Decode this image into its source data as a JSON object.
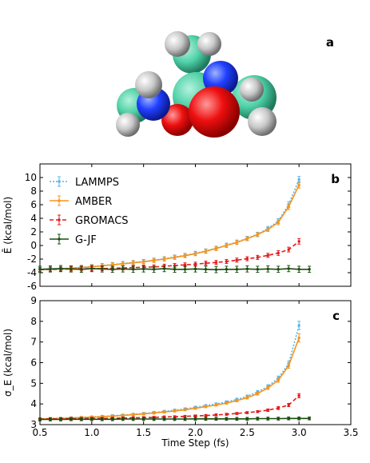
{
  "molecule": {
    "panel_label": "a"
  },
  "chart_data": [
    {
      "type": "line",
      "panel_label": "b",
      "ylabel": "Ē (kcal/mol)",
      "xlim": [
        0.5,
        3.5
      ],
      "ylim": [
        -6,
        12
      ],
      "yticks": [
        -6,
        -4,
        -2,
        0,
        2,
        4,
        6,
        8,
        10
      ],
      "legend_position": "top-left",
      "series": [
        {
          "name": "LAMMPS",
          "color": "#56b4e9",
          "style": "dotted",
          "x": [
            0.5,
            0.6,
            0.7,
            0.8,
            0.9,
            1.0,
            1.1,
            1.2,
            1.3,
            1.4,
            1.5,
            1.6,
            1.7,
            1.8,
            1.9,
            2.0,
            2.1,
            2.2,
            2.3,
            2.4,
            2.5,
            2.6,
            2.7,
            2.8,
            2.9,
            3.0
          ],
          "y": [
            -3.5,
            -3.45,
            -3.4,
            -3.3,
            -3.2,
            -3.1,
            -2.95,
            -2.8,
            -2.65,
            -2.5,
            -2.35,
            -2.15,
            -1.95,
            -1.7,
            -1.45,
            -1.15,
            -0.8,
            -0.4,
            0.05,
            0.5,
            1.05,
            1.65,
            2.5,
            3.6,
            6.0,
            9.7
          ],
          "err": [
            0.3,
            0.3,
            0.3,
            0.3,
            0.3,
            0.3,
            0.3,
            0.3,
            0.3,
            0.3,
            0.3,
            0.3,
            0.3,
            0.3,
            0.3,
            0.3,
            0.3,
            0.3,
            0.3,
            0.3,
            0.3,
            0.3,
            0.3,
            0.35,
            0.4,
            0.45
          ]
        },
        {
          "name": "AMBER",
          "color": "#f7941d",
          "style": "solid",
          "x": [
            0.5,
            0.6,
            0.7,
            0.8,
            0.9,
            1.0,
            1.1,
            1.2,
            1.3,
            1.4,
            1.5,
            1.6,
            1.7,
            1.8,
            1.9,
            2.0,
            2.1,
            2.2,
            2.3,
            2.4,
            2.5,
            2.6,
            2.7,
            2.8,
            2.9,
            3.0
          ],
          "y": [
            -3.55,
            -3.5,
            -3.45,
            -3.35,
            -3.25,
            -3.15,
            -3.0,
            -2.85,
            -2.7,
            -2.55,
            -2.4,
            -2.2,
            -2.0,
            -1.75,
            -1.5,
            -1.2,
            -0.85,
            -0.45,
            0.0,
            0.45,
            1.0,
            1.6,
            2.35,
            3.4,
            5.7,
            8.9
          ],
          "err": [
            0.3,
            0.3,
            0.3,
            0.3,
            0.3,
            0.3,
            0.3,
            0.3,
            0.3,
            0.3,
            0.3,
            0.3,
            0.3,
            0.3,
            0.3,
            0.3,
            0.3,
            0.3,
            0.3,
            0.3,
            0.3,
            0.3,
            0.3,
            0.35,
            0.4,
            0.45
          ]
        },
        {
          "name": "GROMACS",
          "color": "#e41a1c",
          "style": "dashed",
          "x": [
            0.5,
            0.6,
            0.7,
            0.8,
            0.9,
            1.0,
            1.1,
            1.2,
            1.3,
            1.4,
            1.5,
            1.6,
            1.7,
            1.8,
            1.9,
            2.0,
            2.1,
            2.2,
            2.3,
            2.4,
            2.5,
            2.6,
            2.7,
            2.8,
            2.9,
            3.0
          ],
          "y": [
            -3.55,
            -3.5,
            -3.5,
            -3.45,
            -3.45,
            -3.4,
            -3.4,
            -3.35,
            -3.3,
            -3.25,
            -3.2,
            -3.15,
            -3.05,
            -2.95,
            -2.85,
            -2.75,
            -2.6,
            -2.5,
            -2.35,
            -2.15,
            -1.95,
            -1.75,
            -1.45,
            -1.1,
            -0.6,
            0.6
          ],
          "err": [
            0.3,
            0.3,
            0.3,
            0.3,
            0.3,
            0.3,
            0.3,
            0.3,
            0.3,
            0.3,
            0.3,
            0.3,
            0.3,
            0.3,
            0.3,
            0.3,
            0.3,
            0.3,
            0.3,
            0.3,
            0.3,
            0.3,
            0.3,
            0.35,
            0.35,
            0.4
          ]
        },
        {
          "name": "G-JF",
          "color": "#1b4d0f",
          "style": "solid",
          "x": [
            0.5,
            0.6,
            0.7,
            0.8,
            0.9,
            1.0,
            1.1,
            1.2,
            1.3,
            1.4,
            1.5,
            1.6,
            1.7,
            1.8,
            1.9,
            2.0,
            2.1,
            2.2,
            2.3,
            2.4,
            2.5,
            2.6,
            2.7,
            2.8,
            2.9,
            3.0,
            3.1
          ],
          "y": [
            -3.5,
            -3.45,
            -3.4,
            -3.45,
            -3.5,
            -3.4,
            -3.45,
            -3.5,
            -3.45,
            -3.5,
            -3.45,
            -3.5,
            -3.4,
            -3.5,
            -3.5,
            -3.45,
            -3.5,
            -3.55,
            -3.5,
            -3.5,
            -3.45,
            -3.5,
            -3.45,
            -3.5,
            -3.4,
            -3.5,
            -3.5
          ],
          "err": [
            0.45,
            0.45,
            0.45,
            0.45,
            0.45,
            0.45,
            0.45,
            0.45,
            0.45,
            0.45,
            0.45,
            0.45,
            0.45,
            0.45,
            0.45,
            0.45,
            0.45,
            0.45,
            0.45,
            0.45,
            0.45,
            0.45,
            0.45,
            0.45,
            0.45,
            0.45,
            0.45
          ]
        }
      ]
    },
    {
      "type": "line",
      "panel_label": "c",
      "xlabel": "Time Step (fs)",
      "ylabel": "σ_E (kcal/mol)",
      "xlim": [
        0.5,
        3.5
      ],
      "ylim": [
        3,
        9
      ],
      "xticks": [
        0.5,
        1.0,
        1.5,
        2.0,
        2.5,
        3.0,
        3.5
      ],
      "yticks": [
        3,
        4,
        5,
        6,
        7,
        8,
        9
      ],
      "series": [
        {
          "name": "LAMMPS",
          "color": "#56b4e9",
          "style": "dotted",
          "x": [
            0.5,
            0.6,
            0.7,
            0.8,
            0.9,
            1.0,
            1.1,
            1.2,
            1.3,
            1.4,
            1.5,
            1.6,
            1.7,
            1.8,
            1.9,
            2.0,
            2.1,
            2.2,
            2.3,
            2.4,
            2.5,
            2.6,
            2.7,
            2.8,
            2.9,
            3.0
          ],
          "y": [
            3.28,
            3.3,
            3.31,
            3.33,
            3.35,
            3.37,
            3.4,
            3.43,
            3.46,
            3.5,
            3.54,
            3.59,
            3.64,
            3.7,
            3.76,
            3.84,
            3.92,
            4.0,
            4.1,
            4.22,
            4.37,
            4.58,
            4.85,
            5.25,
            5.95,
            7.8
          ],
          "err": [
            0.05,
            0.05,
            0.05,
            0.05,
            0.05,
            0.05,
            0.05,
            0.05,
            0.05,
            0.05,
            0.05,
            0.05,
            0.05,
            0.05,
            0.05,
            0.05,
            0.05,
            0.05,
            0.05,
            0.06,
            0.06,
            0.07,
            0.08,
            0.1,
            0.12,
            0.2
          ]
        },
        {
          "name": "AMBER",
          "color": "#f7941d",
          "style": "solid",
          "x": [
            0.5,
            0.6,
            0.7,
            0.8,
            0.9,
            1.0,
            1.1,
            1.2,
            1.3,
            1.4,
            1.5,
            1.6,
            1.7,
            1.8,
            1.9,
            2.0,
            2.1,
            2.2,
            2.3,
            2.4,
            2.5,
            2.6,
            2.7,
            2.8,
            2.9,
            3.0
          ],
          "y": [
            3.27,
            3.29,
            3.3,
            3.32,
            3.34,
            3.36,
            3.38,
            3.41,
            3.44,
            3.48,
            3.52,
            3.56,
            3.61,
            3.66,
            3.72,
            3.79,
            3.87,
            3.95,
            4.04,
            4.16,
            4.3,
            4.5,
            4.78,
            5.15,
            5.85,
            7.2
          ],
          "err": [
            0.05,
            0.05,
            0.05,
            0.05,
            0.05,
            0.05,
            0.05,
            0.05,
            0.05,
            0.05,
            0.05,
            0.05,
            0.05,
            0.05,
            0.05,
            0.05,
            0.05,
            0.05,
            0.05,
            0.06,
            0.06,
            0.07,
            0.08,
            0.1,
            0.12,
            0.2
          ]
        },
        {
          "name": "GROMACS",
          "color": "#e41a1c",
          "style": "dashed",
          "x": [
            0.5,
            0.6,
            0.7,
            0.8,
            0.9,
            1.0,
            1.1,
            1.2,
            1.3,
            1.4,
            1.5,
            1.6,
            1.7,
            1.8,
            1.9,
            2.0,
            2.1,
            2.2,
            2.3,
            2.4,
            2.5,
            2.6,
            2.7,
            2.8,
            2.9,
            3.0
          ],
          "y": [
            3.27,
            3.28,
            3.28,
            3.29,
            3.29,
            3.3,
            3.3,
            3.31,
            3.32,
            3.33,
            3.34,
            3.35,
            3.37,
            3.38,
            3.4,
            3.42,
            3.44,
            3.47,
            3.5,
            3.54,
            3.58,
            3.63,
            3.7,
            3.8,
            3.95,
            4.4
          ],
          "err": [
            0.05,
            0.05,
            0.05,
            0.05,
            0.05,
            0.05,
            0.05,
            0.05,
            0.05,
            0.05,
            0.05,
            0.05,
            0.05,
            0.05,
            0.05,
            0.05,
            0.05,
            0.05,
            0.05,
            0.05,
            0.05,
            0.05,
            0.06,
            0.07,
            0.08,
            0.1
          ]
        },
        {
          "name": "G-JF",
          "color": "#1b4d0f",
          "style": "solid",
          "x": [
            0.5,
            0.6,
            0.7,
            0.8,
            0.9,
            1.0,
            1.1,
            1.2,
            1.3,
            1.4,
            1.5,
            1.6,
            1.7,
            1.8,
            1.9,
            2.0,
            2.1,
            2.2,
            2.3,
            2.4,
            2.5,
            2.6,
            2.7,
            2.8,
            2.9,
            3.0,
            3.1
          ],
          "y": [
            3.25,
            3.25,
            3.25,
            3.26,
            3.26,
            3.26,
            3.26,
            3.26,
            3.27,
            3.27,
            3.27,
            3.27,
            3.27,
            3.27,
            3.27,
            3.28,
            3.28,
            3.28,
            3.28,
            3.28,
            3.28,
            3.29,
            3.29,
            3.29,
            3.3,
            3.3,
            3.3
          ],
          "err": [
            0.07,
            0.07,
            0.07,
            0.07,
            0.07,
            0.07,
            0.07,
            0.07,
            0.07,
            0.07,
            0.07,
            0.07,
            0.07,
            0.07,
            0.07,
            0.07,
            0.07,
            0.07,
            0.07,
            0.07,
            0.07,
            0.07,
            0.07,
            0.07,
            0.07,
            0.07,
            0.07
          ]
        }
      ]
    }
  ]
}
